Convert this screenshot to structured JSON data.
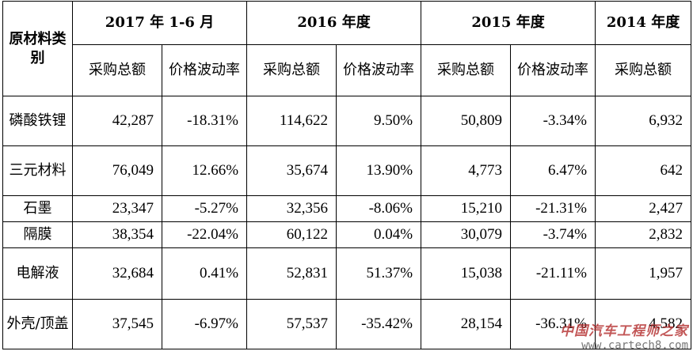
{
  "table": {
    "category_header": "原材料类别",
    "years": [
      "2017 年 1-6 月",
      "2016 年度",
      "2015 年度",
      "2014 年度"
    ],
    "sub_headers": {
      "amount": "采购总额",
      "volatility": "价格波动率"
    },
    "rows": [
      {
        "category": "磷酸铁锂",
        "v": [
          "42,287",
          "-18.31%",
          "114,622",
          "9.50%",
          "50,809",
          "-3.34%",
          "6,932"
        ]
      },
      {
        "category": "三元材料",
        "v": [
          "76,049",
          "12.66%",
          "35,674",
          "13.90%",
          "4,773",
          "6.47%",
          "642"
        ]
      },
      {
        "category": "石墨",
        "v": [
          "23,347",
          "-5.27%",
          "32,356",
          "-8.06%",
          "15,210",
          "-21.31%",
          "2,427"
        ]
      },
      {
        "category": "隔膜",
        "v": [
          "38,354",
          "-22.04%",
          "60,122",
          "0.04%",
          "30,079",
          "-3.74%",
          "2,832"
        ]
      },
      {
        "category": "电解液",
        "v": [
          "32,684",
          "0.41%",
          "52,831",
          "51.37%",
          "15,038",
          "-21.11%",
          "1,957"
        ]
      },
      {
        "category": "外壳/顶盖",
        "v": [
          "37,545",
          "-6.97%",
          "57,537",
          "-35.42%",
          "28,154",
          "-36.31%",
          "4,582"
        ]
      }
    ]
  },
  "watermark": {
    "name": "中国汽车工程师之家",
    "url": "www.cartech8.com"
  }
}
